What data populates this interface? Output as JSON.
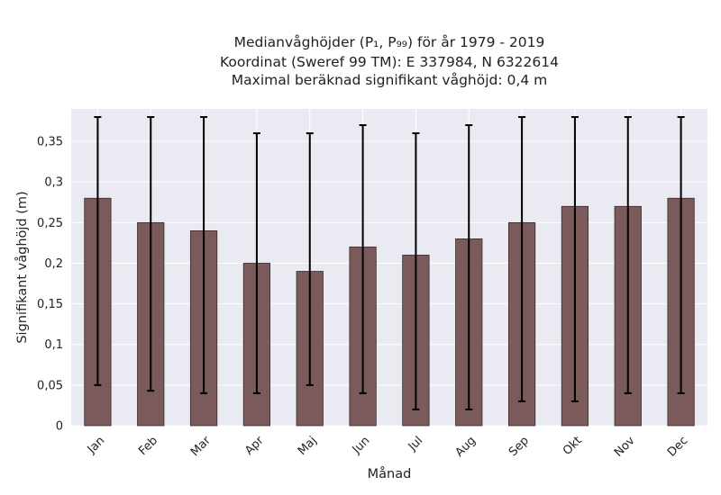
{
  "chart_data": {
    "type": "bar",
    "title": [
      "Medianvåghöjder (P₁, P₉₉) för år 1979 - 2019",
      "Koordinat (Sweref 99 TM): E 337984, N 6322614",
      "Maximal beräknad signifikant våghöjd: 0,4 m"
    ],
    "xlabel": "Månad",
    "ylabel": "Signifikant våghöjd (m)",
    "categories": [
      "Jan",
      "Feb",
      "Mar",
      "Apr",
      "Maj",
      "Jun",
      "Jul",
      "Aug",
      "Sep",
      "Okt",
      "Nov",
      "Dec"
    ],
    "values": [
      0.28,
      0.25,
      0.24,
      0.2,
      0.19,
      0.22,
      0.21,
      0.23,
      0.25,
      0.27,
      0.27,
      0.28
    ],
    "error_low": [
      0.05,
      0.043,
      0.04,
      0.04,
      0.05,
      0.04,
      0.02,
      0.02,
      0.03,
      0.03,
      0.04,
      0.04
    ],
    "error_high": [
      0.38,
      0.38,
      0.38,
      0.36,
      0.36,
      0.37,
      0.36,
      0.37,
      0.38,
      0.38,
      0.38,
      0.38
    ],
    "ylim": [
      0,
      0.39
    ],
    "yticks": [
      0,
      0.05,
      0.1,
      0.15,
      0.2,
      0.25,
      0.3,
      0.35
    ],
    "ytick_labels": [
      "0",
      "0,05",
      "0,1",
      "0,15",
      "0,2",
      "0,25",
      "0,3",
      "0,35"
    ],
    "grid": true,
    "colors": {
      "bar": "#7a5a5a",
      "bar_edge": "#3a2a2a",
      "error": "#000000",
      "plot_bg": "#eaeaf2",
      "grid": "#ffffff"
    }
  }
}
